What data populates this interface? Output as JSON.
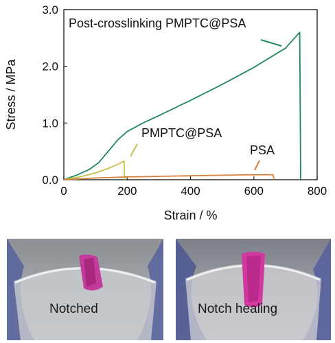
{
  "chart_data": {
    "type": "line",
    "xlabel": "Strain / %",
    "ylabel": "Stress / MPa",
    "xlim": [
      0,
      800
    ],
    "ylim": [
      0,
      3.0
    ],
    "x_ticks": [
      0,
      200,
      400,
      600,
      800
    ],
    "y_ticks": [
      "0.0",
      "1.0",
      "2.0",
      "3.0"
    ],
    "grid": false,
    "series": [
      {
        "name": "Post-crosslinking PMPTC@PSA",
        "color": "#1f8a5a",
        "points": [
          [
            0,
            0
          ],
          [
            40,
            0.08
          ],
          [
            80,
            0.18
          ],
          [
            110,
            0.3
          ],
          [
            140,
            0.5
          ],
          [
            170,
            0.7
          ],
          [
            200,
            0.85
          ],
          [
            250,
            1.0
          ],
          [
            300,
            1.13
          ],
          [
            400,
            1.4
          ],
          [
            500,
            1.68
          ],
          [
            600,
            1.98
          ],
          [
            700,
            2.32
          ],
          [
            745,
            2.6
          ],
          [
            748,
            0
          ]
        ]
      },
      {
        "name": "PMPTC@PSA",
        "color": "#c9c04a",
        "points": [
          [
            0,
            0
          ],
          [
            50,
            0.05
          ],
          [
            100,
            0.12
          ],
          [
            140,
            0.2
          ],
          [
            170,
            0.27
          ],
          [
            190,
            0.33
          ],
          [
            192,
            0
          ]
        ]
      },
      {
        "name": "PSA",
        "color": "#d9813a",
        "points": [
          [
            0,
            0
          ],
          [
            100,
            0.03
          ],
          [
            200,
            0.05
          ],
          [
            400,
            0.07
          ],
          [
            550,
            0.085
          ],
          [
            660,
            0.09
          ],
          [
            665,
            0
          ]
        ]
      }
    ]
  },
  "annotations": {
    "post_label": "Post-crosslinking PMPTC@PSA",
    "pmptc_label": "PMPTC@PSA",
    "psa_label": "PSA"
  },
  "photos": {
    "left_label": "Notched",
    "right_label": "Notch healing"
  }
}
